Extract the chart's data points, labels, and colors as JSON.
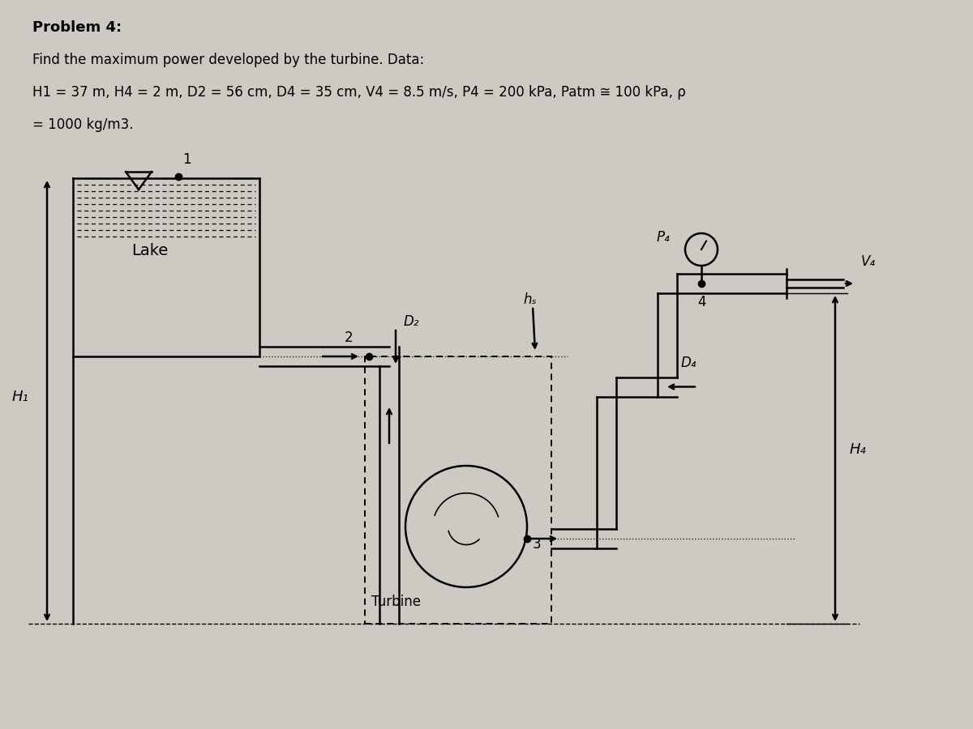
{
  "bg_color": "#cdc9c3",
  "title_line1": "Problem 4:",
  "title_line2": "Find the maximum power developed by the turbine. Data:",
  "title_line3": "H1 = 37 m, H4 = 2 m, D2 = 56 cm, D4 = 35 cm, V4 = 8.5 m/s, P4 = 200 kPa, Patm ≅ 100 kPa, ρ",
  "title_line4": "= 1000 kg/m3.",
  "label_lake": "Lake",
  "label_H1": "H₁",
  "label_H4": "H₄",
  "label_D2": "D₂",
  "label_D4": "D₄",
  "label_hs": "hₛ",
  "label_P4": "P₄",
  "label_V4": "V₄",
  "label_turbine": "Turbine",
  "label_1": "1",
  "label_2": "2",
  "label_3": "3",
  "label_4": "4",
  "line_color": "#000000",
  "text_color": "#000000"
}
